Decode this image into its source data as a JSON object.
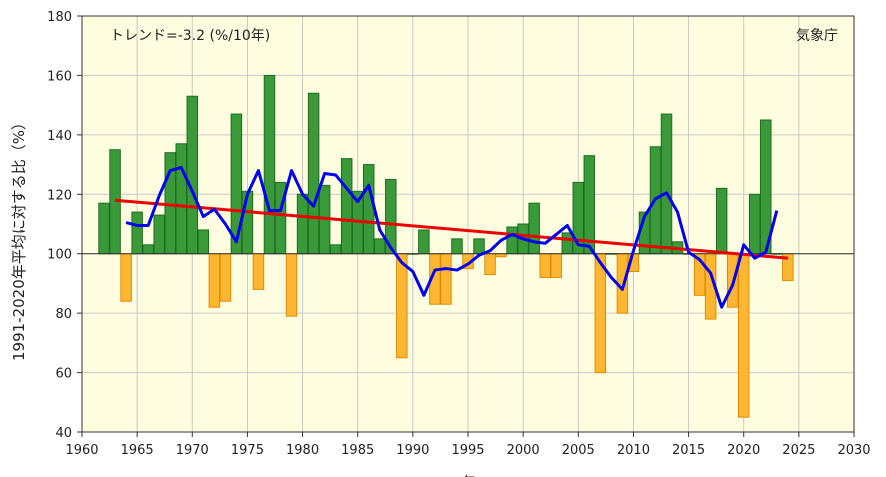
{
  "chart_data": {
    "type": "bar",
    "ylabel": "1991-2020年平均に対する比（%）",
    "xlabel": "年",
    "annotation": "トレンド=-3.2 (%/10年)",
    "source": "気象庁",
    "xlim": [
      1960,
      2030
    ],
    "ylim": [
      40,
      180
    ],
    "baseline": 100,
    "xticks": [
      1960,
      1965,
      1970,
      1975,
      1980,
      1985,
      1990,
      1995,
      2000,
      2005,
      2010,
      2015,
      2020,
      2025,
      2030
    ],
    "yticks": [
      40,
      60,
      80,
      100,
      120,
      140,
      160,
      180
    ],
    "grid": true,
    "colors": {
      "background": "#fffde0",
      "above": "#3a9a3a",
      "above_edge": "#1f6b1f",
      "below": "#ffb733",
      "below_edge": "#e08a00",
      "moving_average": "#0000ee",
      "trend": "#ee0000"
    },
    "years": [
      1962,
      1963,
      1964,
      1965,
      1966,
      1967,
      1968,
      1969,
      1970,
      1971,
      1972,
      1973,
      1974,
      1975,
      1976,
      1977,
      1978,
      1979,
      1980,
      1981,
      1982,
      1983,
      1984,
      1985,
      1986,
      1987,
      1988,
      1989,
      1990,
      1991,
      1992,
      1993,
      1994,
      1995,
      1996,
      1997,
      1998,
      1999,
      2000,
      2001,
      2002,
      2003,
      2004,
      2005,
      2006,
      2007,
      2008,
      2009,
      2010,
      2011,
      2012,
      2013,
      2014,
      2015,
      2016,
      2017,
      2018,
      2019,
      2020,
      2021,
      2022,
      2023,
      2024
    ],
    "values": [
      117,
      135,
      84,
      114,
      103,
      113,
      134,
      137,
      153,
      108,
      82,
      84,
      147,
      121,
      88,
      160,
      124,
      79,
      120,
      154,
      123,
      103,
      132,
      121,
      130,
      105,
      125,
      65,
      100,
      108,
      83,
      83,
      105,
      95,
      105,
      93,
      99,
      109,
      110,
      117,
      92,
      92,
      107,
      124,
      133,
      60,
      100,
      80,
      94,
      114,
      136,
      147,
      104,
      100,
      86,
      78,
      122,
      82,
      45,
      120,
      145,
      100,
      91
    ],
    "moving_average": {
      "years": [
        1964,
        1965,
        1966,
        1967,
        1968,
        1969,
        1970,
        1971,
        1972,
        1973,
        1974,
        1975,
        1976,
        1977,
        1978,
        1979,
        1980,
        1981,
        1982,
        1983,
        1984,
        1985,
        1986,
        1987,
        1988,
        1989,
        1990,
        1991,
        1992,
        1993,
        1994,
        1995,
        1996,
        1997,
        1998,
        1999,
        2000,
        2001,
        2002,
        2003,
        2004,
        2005,
        2006,
        2007,
        2008,
        2009,
        2010,
        2011,
        2012,
        2013,
        2014,
        2015,
        2016,
        2017,
        2018,
        2019,
        2020,
        2021,
        2022,
        2023
      ],
      "values": [
        110.5,
        109.5,
        109.5,
        119.5,
        128,
        129,
        121,
        112.5,
        115,
        110,
        104,
        120,
        128,
        114.5,
        114.5,
        128,
        120,
        116,
        127,
        126.5,
        122,
        117.5,
        123,
        108,
        102,
        97,
        94,
        86,
        94.5,
        95,
        94.5,
        96.5,
        99.5,
        101,
        104.5,
        106.5,
        105,
        104,
        103.5,
        106.5,
        109.5,
        103,
        102.5,
        97,
        92,
        88,
        101,
        112.5,
        118.5,
        120.5,
        114,
        100.5,
        98,
        93.5,
        82,
        89.5,
        103,
        98.5,
        100.5,
        114.5
      ]
    },
    "trend": {
      "start": [
        1963,
        118
      ],
      "end": [
        2024,
        98.5
      ]
    }
  }
}
